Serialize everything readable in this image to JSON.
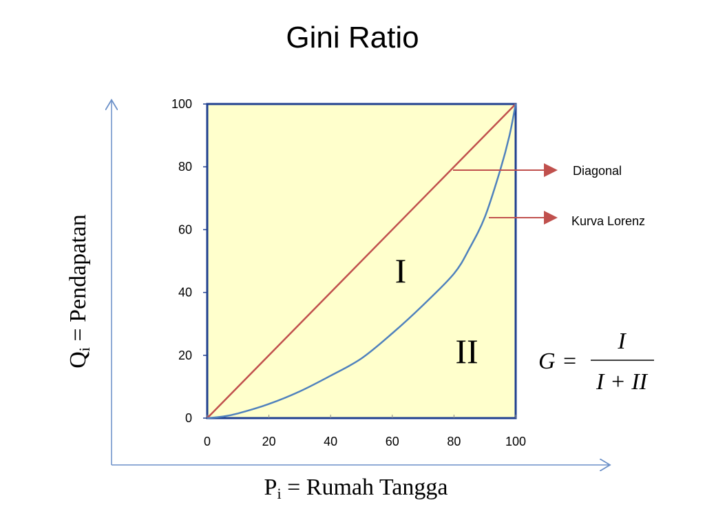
{
  "title": "Gini Ratio",
  "chart_data": {
    "type": "line",
    "xlim": [
      0,
      100
    ],
    "ylim": [
      0,
      100
    ],
    "x_ticks": [
      "0",
      "20",
      "40",
      "60",
      "80",
      "100"
    ],
    "y_ticks": [
      "0",
      "20",
      "40",
      "60",
      "80",
      "100"
    ],
    "xlabel": {
      "main": "P",
      "sub": "i",
      "rest": " = Rumah Tangga"
    },
    "ylabel": {
      "main": "Q",
      "sub": "i",
      "rest": " = Pendapatan"
    },
    "series": [
      {
        "name": "Diagonal",
        "x": [
          0,
          100
        ],
        "y": [
          0,
          100
        ]
      },
      {
        "name": "Kurva Lorenz",
        "x": [
          0,
          5,
          10,
          20,
          30,
          40,
          50,
          60,
          70,
          80,
          85,
          90,
          95,
          98,
          100
        ],
        "y": [
          0,
          0.5,
          1.5,
          4.5,
          8.5,
          13.5,
          19,
          27,
          36,
          46,
          54,
          64,
          79,
          90,
          100
        ]
      }
    ],
    "annotations": [
      "Diagonal",
      "Kurva Lorenz"
    ],
    "regions": [
      "I",
      "II"
    ],
    "formula": {
      "lhs": "G",
      "eq": "=",
      "numerator": "I",
      "denominator": "I + II"
    },
    "colors": {
      "plot_bg": "#FFFFCC",
      "frame": "#1F3F8F",
      "diagonal": "#C0504D",
      "lorenz": "#4F81BD",
      "arrow": "#C0504D",
      "outer_axis": "#6A8FC8"
    }
  }
}
